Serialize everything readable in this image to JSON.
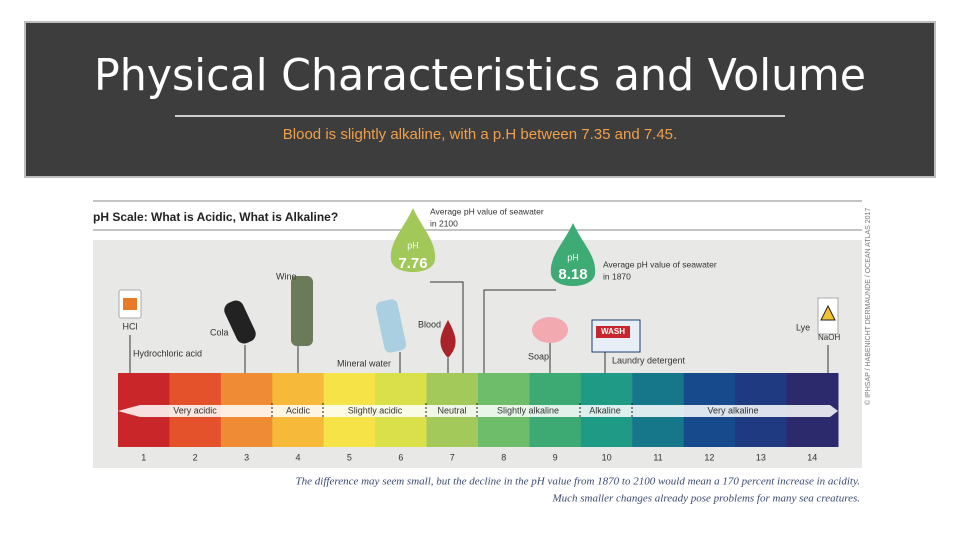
{
  "header": {
    "title": "Physical Characteristics and Volume",
    "subtitle": "Blood is slightly alkaline, with a p.H between 7.35 and 7.45."
  },
  "infographic": {
    "title": "pH Scale: What is Acidic, What is Alkaline?",
    "drop_2100": {
      "label": "pH",
      "value": "7.76",
      "note": [
        "Average pH value of seawater",
        "in 2100"
      ]
    },
    "drop_1870": {
      "label": "pH",
      "value": "8.18",
      "note": [
        "Average pH value of seawater",
        "in 1870"
      ]
    },
    "items": {
      "hcl_badge": "HCl",
      "hcl": "Hydrochloric acid",
      "cola": "Cola",
      "wine": "Wine",
      "water": "Mineral water",
      "blood": "Blood",
      "soap": "Soap",
      "wash": "WASH",
      "detergent": "Laundry detergent",
      "lye": "Lye",
      "naoh": "NaOH"
    },
    "scale": [
      "1",
      "2",
      "3",
      "4",
      "5",
      "6",
      "7",
      "8",
      "9",
      "10",
      "11",
      "12",
      "13",
      "14"
    ],
    "colors": [
      "#c9262a",
      "#e4522b",
      "#f08b35",
      "#f6b93a",
      "#f5e347",
      "#d9e04a",
      "#a3c95a",
      "#6ebd6a",
      "#3daa73",
      "#1f9a84",
      "#17778a",
      "#174a8c",
      "#1f3a80",
      "#2c2a6d"
    ],
    "ranges": [
      "Very acidic",
      "Acidic",
      "Slightly acidic",
      "Neutral",
      "Slightly alkaline",
      "Alkaline",
      "Very alkaline"
    ],
    "footnote": [
      "The difference may seem small, but the decline in the pH value from 1870 to 2100 would mean a 170 percent increase in acidity.",
      "Much smaller changes already pose problems for many sea creatures."
    ],
    "credit": "© IPHSAP / HABENICHT DERMAUNDE / OCEAN ATLAS 2017"
  }
}
